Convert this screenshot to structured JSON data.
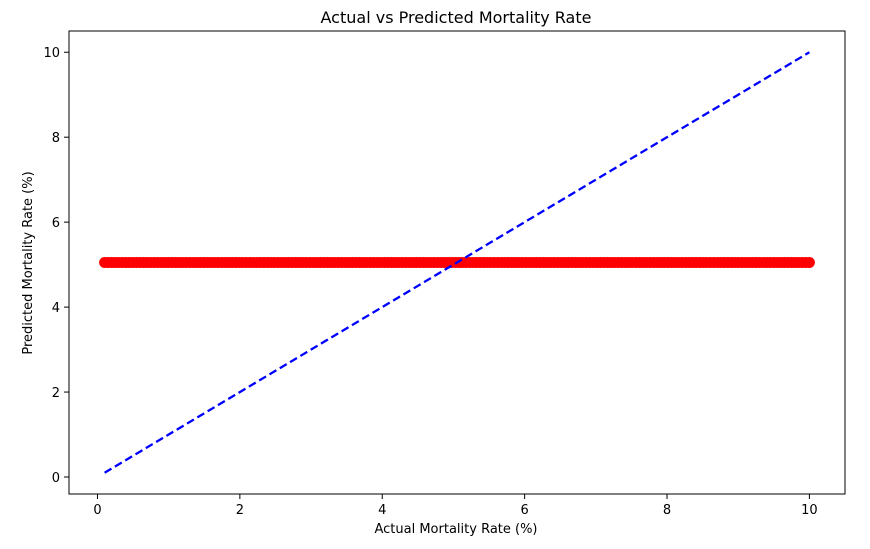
{
  "chart_data": {
    "type": "scatter",
    "title": "Actual vs Predicted Mortality Rate",
    "xlabel": "Actual Mortality Rate (%)",
    "ylabel": "Predicted Mortality Rate (%)",
    "xlim": [
      -0.4,
      10.5
    ],
    "ylim": [
      -0.4,
      10.5
    ],
    "xticks": [
      "0",
      "2",
      "4",
      "6",
      "8",
      "10"
    ],
    "yticks": [
      "0",
      "2",
      "4",
      "6",
      "8",
      "10"
    ],
    "grid": false,
    "colors": {
      "points": "#ff0000",
      "reference_line": "#0000ff"
    },
    "points": {
      "x_start": 0.1,
      "x_end": 10.0,
      "count": 200,
      "y": 5.05
    },
    "reference_line": {
      "x": [
        0.1,
        10.0
      ],
      "y": [
        0.1,
        10.0
      ],
      "style": "dashed"
    }
  }
}
